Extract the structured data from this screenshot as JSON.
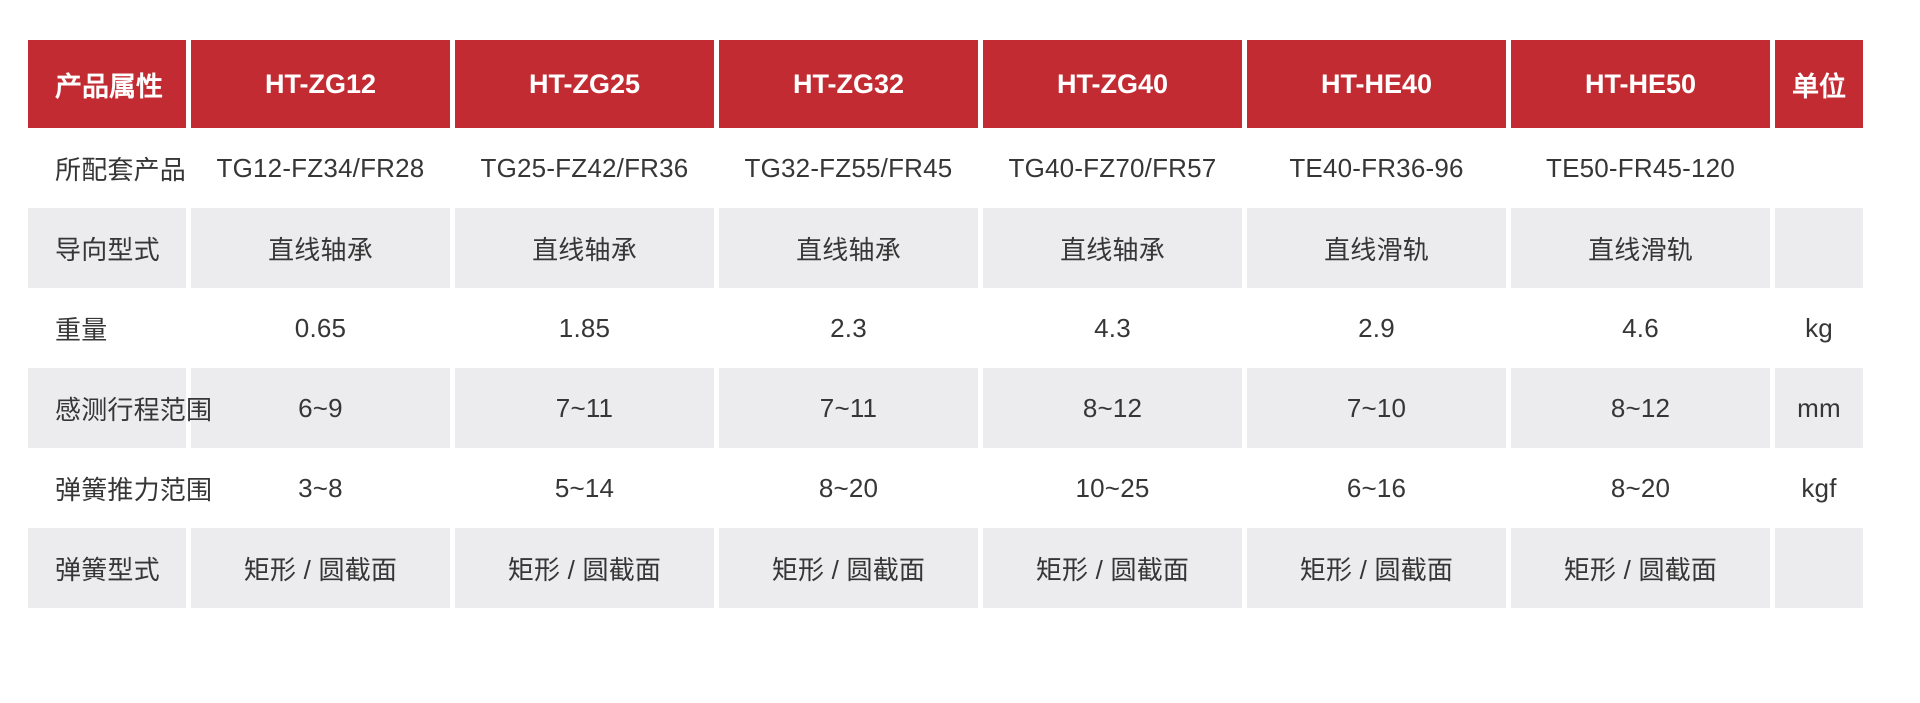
{
  "table": {
    "title_cell": "产品属性",
    "unit_header": "单位",
    "header": [
      "产品属性",
      "HT-ZG12",
      "HT-ZG25",
      "HT-ZG32",
      "HT-ZG40",
      "HT-HE40",
      "HT-HE50",
      "单位"
    ],
    "rows": [
      {
        "label": "所配套产品",
        "values": [
          "TG12-FZ34/FR28",
          "TG25-FZ42/FR36",
          "TG32-FZ55/FR45",
          "TG40-FZ70/FR57",
          "TE40-FR36-96",
          "TE50-FR45-120"
        ],
        "unit": ""
      },
      {
        "label": "导向型式",
        "values": [
          "直线轴承",
          "直线轴承",
          "直线轴承",
          "直线轴承",
          "直线滑轨",
          "直线滑轨"
        ],
        "unit": ""
      },
      {
        "label": "重量",
        "values": [
          "0.65",
          "1.85",
          "2.3",
          "4.3",
          "2.9",
          "4.6"
        ],
        "unit": "kg"
      },
      {
        "label": "感测行程范围",
        "values": [
          "6~9",
          "7~11",
          "7~11",
          "8~12",
          "7~10",
          "8~12"
        ],
        "unit": "mm"
      },
      {
        "label": "弹簧推力范围",
        "values": [
          "3~8",
          "5~14",
          "8~20",
          "10~25",
          "6~16",
          "8~20"
        ],
        "unit": "kgf"
      },
      {
        "label": "弹簧型式",
        "values": [
          "矩形 / 圆截面",
          "矩形 / 圆截面",
          "矩形 / 圆截面",
          "矩形 / 圆截面",
          "矩形 / 圆截面",
          "矩形 / 圆截面"
        ],
        "unit": ""
      }
    ],
    "colors": {
      "header_bg": "#c32b32",
      "header_text": "#ffffff",
      "alt_row_bg": "#ececee",
      "body_text": "#363636",
      "page_bg": "#ffffff"
    }
  }
}
